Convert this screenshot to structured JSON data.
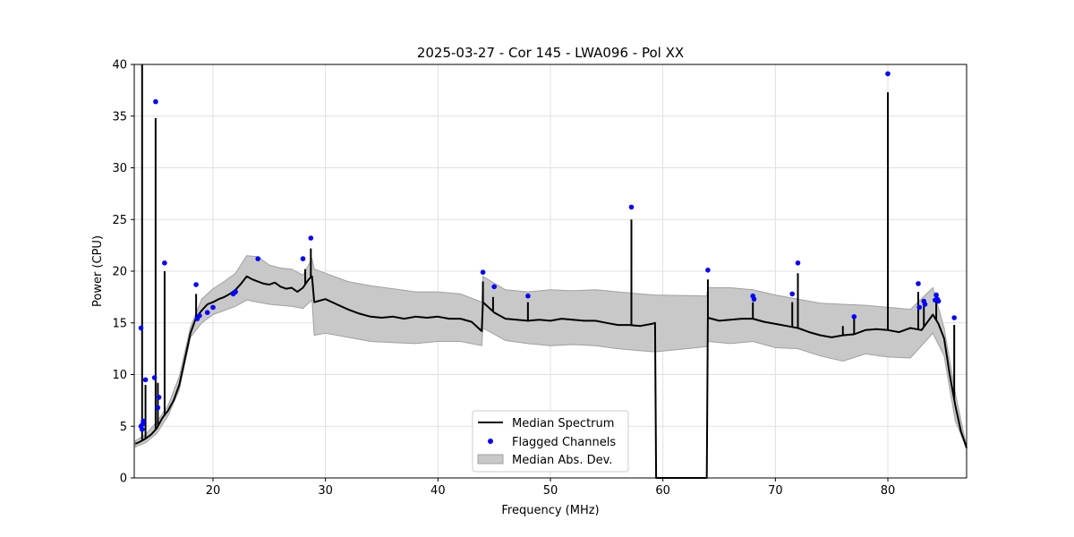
{
  "chart_data": {
    "type": "line",
    "title": "2025-03-27 - Cor 145 - LWA096 - Pol XX",
    "xlabel": "Frequency (MHz)",
    "ylabel": "Power (CPU)",
    "xlim": [
      13.0,
      87.0
    ],
    "ylim": [
      0,
      40
    ],
    "xticks": [
      20,
      30,
      40,
      50,
      60,
      70,
      80
    ],
    "yticks": [
      0,
      5,
      10,
      15,
      20,
      25,
      30,
      35,
      40
    ],
    "grid": true,
    "legend_position": "lower-center",
    "legend": [
      "Median Spectrum",
      "Flagged Channels",
      "Median Abs. Dev."
    ],
    "colors": {
      "median": "#000000",
      "flagged": "#0000ff",
      "band_fill": "#c8c8c8",
      "band_edge": "#a0a0a0",
      "grid": "#e0e0e0"
    },
    "median_spectrum": {
      "x": [
        13.1,
        13.5,
        14.0,
        14.5,
        15.0,
        15.5,
        16.0,
        16.5,
        17.0,
        17.5,
        18.0,
        18.5,
        19.0,
        19.5,
        20.0,
        20.5,
        21.0,
        21.5,
        22.0,
        22.5,
        23.0,
        23.5,
        24.0,
        24.5,
        25.0,
        25.5,
        26.0,
        26.5,
        27.0,
        27.5,
        28.0,
        28.5,
        28.8,
        29.0,
        30.0,
        31.0,
        32.0,
        33.0,
        34.0,
        35.0,
        36.0,
        37.0,
        38.0,
        39.0,
        40.0,
        41.0,
        42.0,
        43.0,
        43.9,
        44.0,
        45.0,
        46.0,
        47.0,
        48.0,
        49.0,
        50.0,
        51.0,
        52.0,
        53.0,
        54.0,
        55.0,
        56.0,
        57.0,
        58.0,
        59.0,
        59.3,
        59.4,
        63.9,
        64.0,
        65.0,
        66.0,
        67.0,
        68.0,
        69.0,
        70.0,
        71.0,
        72.0,
        73.0,
        74.0,
        75.0,
        76.0,
        77.0,
        78.0,
        79.0,
        80.0,
        81.0,
        82.0,
        83.0,
        84.0,
        84.5,
        85.0,
        85.5,
        86.0,
        86.5,
        87.0
      ],
      "y": [
        3.3,
        3.5,
        3.8,
        4.2,
        4.8,
        5.8,
        6.5,
        7.5,
        9.0,
        11.5,
        14.0,
        15.5,
        16.2,
        16.8,
        17.0,
        17.3,
        17.5,
        17.8,
        18.2,
        18.8,
        19.5,
        19.2,
        19.0,
        18.8,
        18.7,
        18.9,
        18.5,
        18.3,
        18.4,
        18.0,
        18.4,
        19.2,
        19.5,
        17.0,
        17.3,
        16.8,
        16.3,
        15.9,
        15.6,
        15.5,
        15.6,
        15.4,
        15.6,
        15.5,
        15.6,
        15.4,
        15.4,
        15.1,
        14.2,
        17.0,
        16.0,
        15.4,
        15.3,
        15.2,
        15.3,
        15.2,
        15.4,
        15.3,
        15.2,
        15.2,
        15.0,
        14.8,
        14.8,
        14.7,
        14.9,
        15.0,
        0.0,
        0.0,
        15.5,
        15.2,
        15.3,
        15.4,
        15.4,
        15.1,
        14.9,
        14.7,
        14.5,
        14.1,
        13.8,
        13.6,
        13.8,
        13.9,
        14.3,
        14.4,
        14.3,
        14.1,
        14.5,
        14.3,
        15.8,
        14.9,
        13.5,
        10.0,
        7.0,
        4.5,
        2.9
      ]
    },
    "spikes": [
      {
        "x": 13.7,
        "y": 40.0
      },
      {
        "x": 14.0,
        "y": 9.0
      },
      {
        "x": 14.9,
        "y": 34.8
      },
      {
        "x": 15.1,
        "y": 9.2
      },
      {
        "x": 15.7,
        "y": 20.0
      },
      {
        "x": 18.5,
        "y": 17.8
      },
      {
        "x": 28.2,
        "y": 20.2
      },
      {
        "x": 28.7,
        "y": 22.2
      },
      {
        "x": 44.0,
        "y": 19.0
      },
      {
        "x": 44.9,
        "y": 17.5
      },
      {
        "x": 48.0,
        "y": 17.0
      },
      {
        "x": 57.2,
        "y": 25.0
      },
      {
        "x": 64.0,
        "y": 19.2
      },
      {
        "x": 68.0,
        "y": 17.0
      },
      {
        "x": 71.5,
        "y": 17.0
      },
      {
        "x": 72.0,
        "y": 19.8
      },
      {
        "x": 76.0,
        "y": 14.7
      },
      {
        "x": 77.0,
        "y": 15.5
      },
      {
        "x": 80.0,
        "y": 37.3
      },
      {
        "x": 82.7,
        "y": 18.0
      },
      {
        "x": 83.2,
        "y": 17.2
      },
      {
        "x": 84.3,
        "y": 17.5
      },
      {
        "x": 85.9,
        "y": 14.8
      }
    ],
    "band": {
      "x": [
        13.1,
        14.0,
        15.0,
        16.0,
        17.0,
        18.0,
        19.0,
        20.0,
        21.0,
        22.0,
        23.0,
        24.0,
        25.0,
        26.0,
        27.0,
        28.0,
        28.8,
        29.0,
        30.0,
        32.0,
        34.0,
        36.0,
        38.0,
        40.0,
        42.0,
        43.9,
        44.0,
        46.0,
        48.0,
        50.0,
        52.0,
        54.0,
        56.0,
        58.0,
        59.3,
        63.9,
        64.0,
        66.0,
        68.0,
        70.0,
        72.0,
        74.0,
        76.0,
        78.0,
        80.0,
        82.0,
        84.0,
        85.0,
        86.0,
        87.0
      ],
      "lower": [
        3.0,
        3.4,
        4.3,
        6.0,
        8.5,
        13.6,
        15.0,
        15.8,
        16.2,
        16.6,
        17.2,
        17.0,
        16.8,
        16.7,
        16.6,
        16.4,
        17.2,
        13.8,
        14.0,
        13.6,
        13.2,
        13.1,
        13.0,
        13.2,
        13.2,
        12.8,
        14.5,
        13.3,
        13.0,
        12.8,
        12.9,
        12.8,
        12.5,
        12.3,
        12.2,
        12.7,
        13.2,
        13.0,
        13.2,
        12.6,
        12.5,
        11.8,
        11.3,
        12.0,
        11.7,
        11.6,
        14.0,
        11.8,
        5.5,
        2.9
      ],
      "upper": [
        3.6,
        4.2,
        5.4,
        7.0,
        9.8,
        14.6,
        17.3,
        18.3,
        19.0,
        19.8,
        21.5,
        21.4,
        20.6,
        20.3,
        20.2,
        19.6,
        21.2,
        20.2,
        19.8,
        19.0,
        18.6,
        18.3,
        18.0,
        18.0,
        17.8,
        17.0,
        19.5,
        18.2,
        18.0,
        18.2,
        18.1,
        18.2,
        18.0,
        17.8,
        17.7,
        17.6,
        18.4,
        18.4,
        18.2,
        17.7,
        17.3,
        16.9,
        16.8,
        16.7,
        16.5,
        16.3,
        18.4,
        14.5,
        8.2,
        3.0
      ]
    },
    "flagged_channels": {
      "x": [
        13.6,
        13.6,
        13.7,
        13.75,
        13.8,
        14.0,
        14.8,
        14.9,
        15.1,
        15.2,
        15.7,
        18.5,
        18.6,
        18.8,
        19.5,
        20.0,
        21.8,
        22.0,
        24.0,
        28.0,
        28.7,
        44.0,
        45.0,
        48.0,
        57.2,
        64.0,
        68.0,
        68.1,
        71.5,
        72.0,
        77.0,
        80.0,
        82.7,
        82.8,
        83.2,
        83.3,
        84.2,
        84.3,
        84.4,
        84.5,
        85.9
      ],
      "y": [
        14.5,
        5.0,
        4.7,
        5.2,
        5.5,
        9.5,
        9.7,
        36.4,
        6.8,
        7.8,
        20.8,
        18.7,
        15.4,
        15.7,
        16.0,
        16.5,
        17.8,
        18.0,
        21.2,
        21.2,
        23.2,
        19.9,
        18.5,
        17.6,
        26.2,
        20.1,
        17.6,
        17.3,
        17.8,
        20.8,
        15.6,
        39.1,
        18.8,
        16.5,
        17.1,
        16.8,
        17.2,
        17.7,
        17.3,
        17.1,
        15.5
      ]
    }
  }
}
